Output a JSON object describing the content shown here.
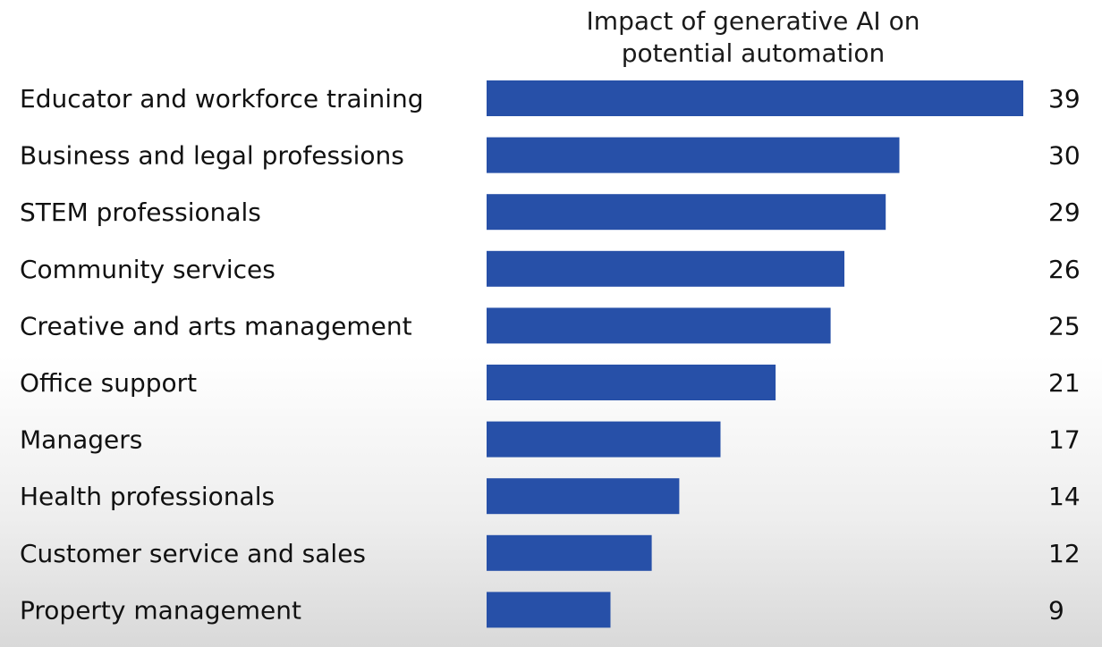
{
  "chart_data": {
    "type": "bar",
    "orientation": "horizontal",
    "title": "Impact of generative AI on potential automation",
    "title_lines": [
      "Impact of generative AI on",
      "potential automation"
    ],
    "categories": [
      "Educator and workforce training",
      "Business and legal professions",
      "STEM professionals",
      "Community services",
      "Creative and arts management",
      "Office support",
      "Managers",
      "Health professionals",
      "Customer service and sales",
      "Property management"
    ],
    "values": [
      39,
      30,
      29,
      26,
      25,
      21,
      17,
      14,
      12,
      9
    ],
    "value_labels": [
      "39",
      "30",
      "29",
      "26",
      "25",
      "21",
      "17",
      "14",
      "12",
      "9"
    ],
    "xlim": [
      0,
      39
    ],
    "grid": false,
    "legend": "none",
    "colors": {
      "bar": "#2750a8",
      "text": "#111111"
    }
  }
}
